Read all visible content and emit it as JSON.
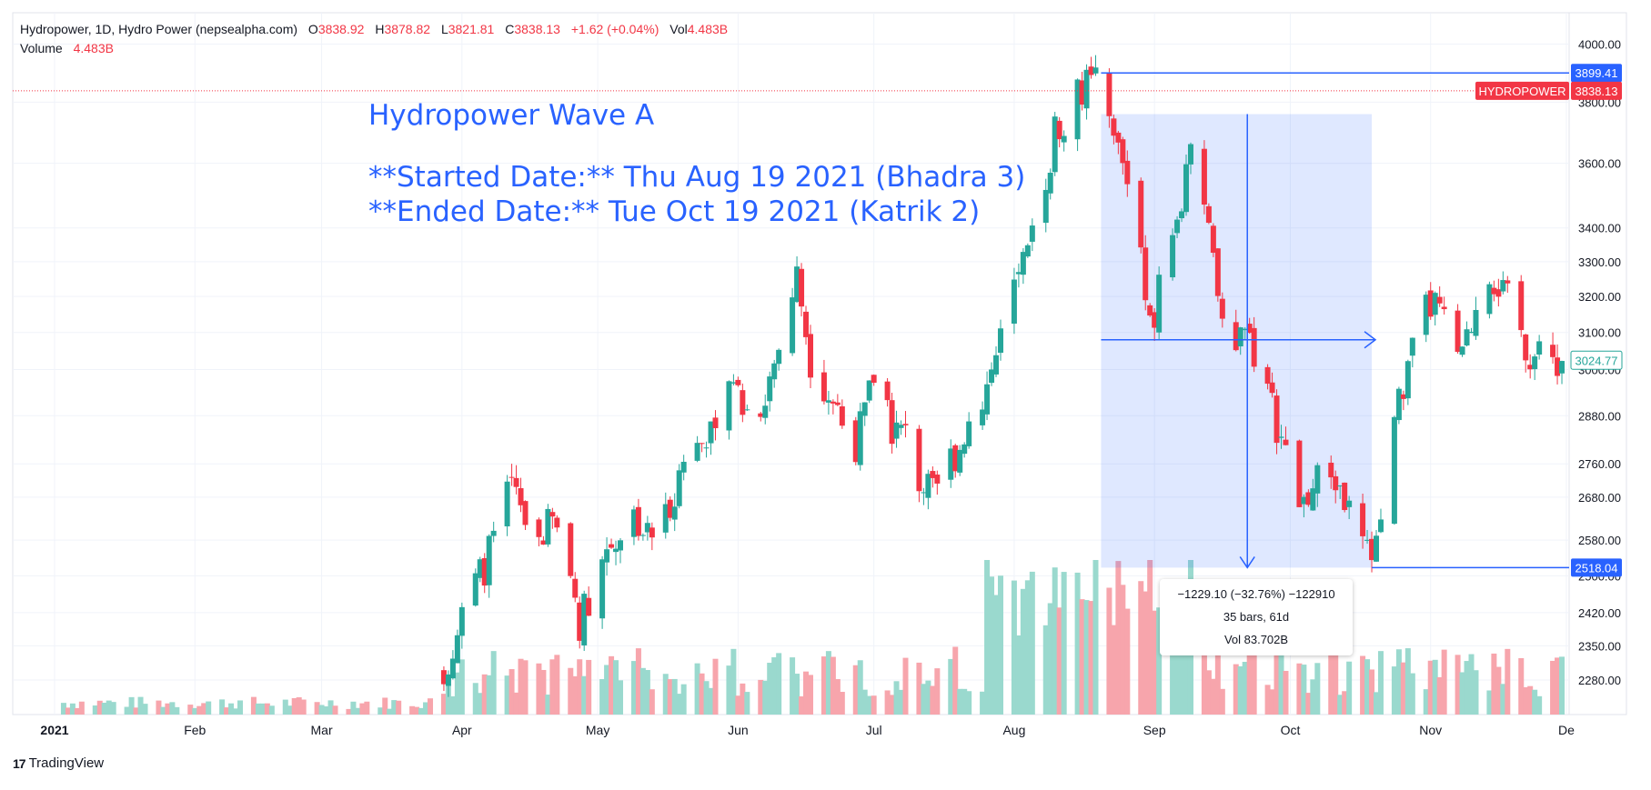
{
  "legend": {
    "symbol": "Hydropower, 1D, Hydro Power (nepsealpha.com)",
    "o_key": "O",
    "o_val": "3838.92",
    "h_key": "H",
    "h_val": "3878.82",
    "l_key": "L",
    "l_val": "3821.81",
    "c_key": "C",
    "c_val": "3838.13",
    "change": "+1.62 (+0.04%)",
    "vol_key": "Vol",
    "vol_val": "4.483B",
    "volume_label": "Volume",
    "volume_value": "4.483B"
  },
  "annotation": {
    "title": "Hydropower Wave A",
    "started": "**Started Date:** Thu Aug 19 2021 (Bhadra 3)",
    "ended": "**Ended Date:** Tue Oct 19 2021 (Katrik 2)"
  },
  "measure": {
    "change_line": "−1229.10 (−32.76%) −122910",
    "bars_line": "35 bars, 61d",
    "vol_line": "Vol 83.702B",
    "color": "#2962ff"
  },
  "price_labels": {
    "high_level": "3899.41",
    "low_level": "2518.04",
    "symbol_tag": "HYDROPOWER",
    "last_price": "3838.13",
    "cursor_price": "3024.77"
  },
  "brand": {
    "logo": "17",
    "name": "TradingView"
  },
  "colors": {
    "up": "#26a69a",
    "down": "#f23645",
    "vol_up": "#9ad9ce",
    "vol_down": "#f7a5ac",
    "accent": "#2962ff"
  },
  "chart_data": {
    "type": "candlestick",
    "title": "Hydropower, 1D, Hydro Power (nepsealpha.com)",
    "x_tick_labels": [
      "2021",
      "Feb",
      "Mar",
      "Apr",
      "May",
      "Jun",
      "Jul",
      "Aug",
      "Sep",
      "Oct",
      "Nov",
      "De"
    ],
    "y_tick_labels": [
      "4000.00",
      "3800.00",
      "3600.00",
      "3400.00",
      "3300.00",
      "3200.00",
      "3100.00",
      "3000.00",
      "2880.00",
      "2760.00",
      "2680.00",
      "2580.00",
      "2500.00",
      "2420.00",
      "2350.00",
      "2280.00"
    ],
    "y_scale": "log",
    "ylim": [
      2240,
      4060
    ],
    "grid": true,
    "close_series": [
      {
        "d": "2021-03-28",
        "c": 2300
      },
      {
        "d": "2021-03-31",
        "c": 2380
      },
      {
        "d": "2021-04-03",
        "c": 2470
      },
      {
        "d": "2021-04-06",
        "c": 2520
      },
      {
        "d": "2021-04-09",
        "c": 2620
      },
      {
        "d": "2021-04-12",
        "c": 2700
      },
      {
        "d": "2021-04-15",
        "c": 2620
      },
      {
        "d": "2021-04-18",
        "c": 2590
      },
      {
        "d": "2021-04-21",
        "c": 2620
      },
      {
        "d": "2021-04-24",
        "c": 2560
      },
      {
        "d": "2021-04-27",
        "c": 2400
      },
      {
        "d": "2021-04-30",
        "c": 2480
      },
      {
        "d": "2021-05-03",
        "c": 2560
      },
      {
        "d": "2021-05-06",
        "c": 2600
      },
      {
        "d": "2021-05-09",
        "c": 2640
      },
      {
        "d": "2021-05-12",
        "c": 2590
      },
      {
        "d": "2021-05-15",
        "c": 2610
      },
      {
        "d": "2021-05-18",
        "c": 2700
      },
      {
        "d": "2021-05-21",
        "c": 2800
      },
      {
        "d": "2021-05-24",
        "c": 2860
      },
      {
        "d": "2021-05-27",
        "c": 2800
      },
      {
        "d": "2021-05-30",
        "c": 3020
      },
      {
        "d": "2021-06-02",
        "c": 2900
      },
      {
        "d": "2021-06-05",
        "c": 2880
      },
      {
        "d": "2021-06-08",
        "c": 2980
      },
      {
        "d": "2021-06-11",
        "c": 3100
      },
      {
        "d": "2021-06-14",
        "c": 3260
      },
      {
        "d": "2021-06-17",
        "c": 3030
      },
      {
        "d": "2021-06-20",
        "c": 2960
      },
      {
        "d": "2021-06-23",
        "c": 2900
      },
      {
        "d": "2021-06-26",
        "c": 2780
      },
      {
        "d": "2021-06-29",
        "c": 2880
      },
      {
        "d": "2021-07-02",
        "c": 3040
      },
      {
        "d": "2021-07-05",
        "c": 2850
      },
      {
        "d": "2021-07-08",
        "c": 2830
      },
      {
        "d": "2021-07-11",
        "c": 2720
      },
      {
        "d": "2021-07-14",
        "c": 2680
      },
      {
        "d": "2021-07-17",
        "c": 2760
      },
      {
        "d": "2021-07-20",
        "c": 2800
      },
      {
        "d": "2021-07-23",
        "c": 2900
      },
      {
        "d": "2021-07-26",
        "c": 2960
      },
      {
        "d": "2021-07-29",
        "c": 3080
      },
      {
        "d": "2021-08-01",
        "c": 3220
      },
      {
        "d": "2021-08-04",
        "c": 3300
      },
      {
        "d": "2021-08-07",
        "c": 3500
      },
      {
        "d": "2021-08-10",
        "c": 3700
      },
      {
        "d": "2021-08-13",
        "c": 3780
      },
      {
        "d": "2021-08-16",
        "c": 3850
      },
      {
        "d": "2021-08-19",
        "c": 3860
      },
      {
        "d": "2021-08-22",
        "c": 3720
      },
      {
        "d": "2021-08-25",
        "c": 3600
      },
      {
        "d": "2021-08-28",
        "c": 3480
      },
      {
        "d": "2021-08-31",
        "c": 3100
      },
      {
        "d": "2021-09-03",
        "c": 3300
      },
      {
        "d": "2021-09-06",
        "c": 3420
      },
      {
        "d": "2021-09-09",
        "c": 3600
      },
      {
        "d": "2021-09-12",
        "c": 3450
      },
      {
        "d": "2021-09-15",
        "c": 3200
      },
      {
        "d": "2021-09-18",
        "c": 3000
      },
      {
        "d": "2021-09-21",
        "c": 3150
      },
      {
        "d": "2021-09-24",
        "c": 3000
      },
      {
        "d": "2021-09-27",
        "c": 2900
      },
      {
        "d": "2021-09-30",
        "c": 2780
      },
      {
        "d": "2021-10-03",
        "c": 2660
      },
      {
        "d": "2021-10-06",
        "c": 2700
      },
      {
        "d": "2021-10-09",
        "c": 2760
      },
      {
        "d": "2021-10-12",
        "c": 2700
      },
      {
        "d": "2021-10-15",
        "c": 2620
      },
      {
        "d": "2021-10-18",
        "c": 2540
      },
      {
        "d": "2021-10-21",
        "c": 2620
      },
      {
        "d": "2021-10-24",
        "c": 2880
      },
      {
        "d": "2021-10-27",
        "c": 2990
      },
      {
        "d": "2021-10-30",
        "c": 3150
      },
      {
        "d": "2021-11-02",
        "c": 3180
      },
      {
        "d": "2021-11-05",
        "c": 3090
      },
      {
        "d": "2021-11-08",
        "c": 3020
      },
      {
        "d": "2021-11-11",
        "c": 3180
      },
      {
        "d": "2021-11-14",
        "c": 3280
      },
      {
        "d": "2021-11-17",
        "c": 3210
      },
      {
        "d": "2021-11-20",
        "c": 3130
      },
      {
        "d": "2021-11-23",
        "c": 3040
      },
      {
        "d": "2021-11-26",
        "c": 3025
      }
    ],
    "measured_range": {
      "from_date": "2021-08-19",
      "to_date": "2021-10-19",
      "high": 3899.41,
      "low": 2518.04,
      "change": -1229.1,
      "change_pct": -32.76,
      "bars": 35,
      "days": 61,
      "volume": "83.702B"
    }
  }
}
